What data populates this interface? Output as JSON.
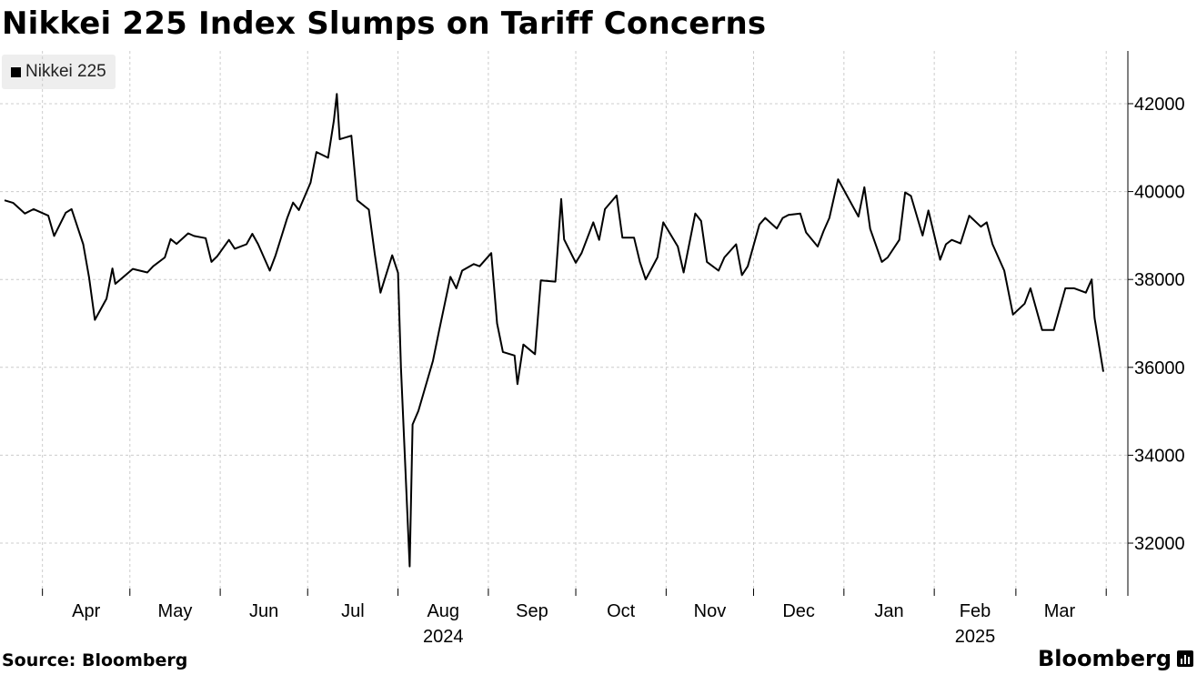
{
  "header": {
    "title": "Nikkei 225 Index Slumps on Tariff Concerns"
  },
  "footer": {
    "source": "Source: Bloomberg",
    "brand": "Bloomberg"
  },
  "colors": {
    "line": "#000000",
    "grid": "#cccccc",
    "axis": "#000000",
    "legend_bg": "#eeeeee"
  },
  "chart_data": {
    "type": "line",
    "title": "Nikkei 225 Index Slumps on Tariff Concerns",
    "xlabel": "",
    "ylabel": "",
    "ylim": [
      30800,
      43200
    ],
    "yticks": [
      32000,
      34000,
      36000,
      38000,
      40000,
      42000
    ],
    "ytick_labels": [
      "32000",
      "34000",
      "36000",
      "38000",
      "40000",
      "42000"
    ],
    "xticks": [
      "Apr",
      "May",
      "Jun",
      "Jul",
      "Aug",
      "Sep",
      "Oct",
      "Nov",
      "Dec",
      "Jan",
      "Feb",
      "Mar"
    ],
    "year_labels": [
      {
        "label": "2024",
        "under": "Aug"
      },
      {
        "label": "2025",
        "under": "Feb"
      }
    ],
    "legend": [
      "Nikkei 225"
    ],
    "legend_position": "top-left",
    "grid": true,
    "x": [
      "2024-03-19",
      "2024-03-22",
      "2024-03-26",
      "2024-03-29",
      "2024-04-03",
      "2024-04-05",
      "2024-04-09",
      "2024-04-11",
      "2024-04-15",
      "2024-04-17",
      "2024-04-19",
      "2024-04-23",
      "2024-04-25",
      "2024-04-26",
      "2024-05-02",
      "2024-05-07",
      "2024-05-09",
      "2024-05-13",
      "2024-05-15",
      "2024-05-17",
      "2024-05-21",
      "2024-05-23",
      "2024-05-27",
      "2024-05-29",
      "2024-05-31",
      "2024-06-04",
      "2024-06-06",
      "2024-06-10",
      "2024-06-12",
      "2024-06-14",
      "2024-06-18",
      "2024-06-20",
      "2024-06-24",
      "2024-06-26",
      "2024-06-28",
      "2024-07-02",
      "2024-07-04",
      "2024-07-08",
      "2024-07-10",
      "2024-07-11",
      "2024-07-12",
      "2024-07-16",
      "2024-07-18",
      "2024-07-22",
      "2024-07-24",
      "2024-07-26",
      "2024-07-30",
      "2024-08-01",
      "2024-08-02",
      "2024-08-05",
      "2024-08-06",
      "2024-08-08",
      "2024-08-13",
      "2024-08-15",
      "2024-08-19",
      "2024-08-21",
      "2024-08-23",
      "2024-08-27",
      "2024-08-29",
      "2024-09-02",
      "2024-09-04",
      "2024-09-06",
      "2024-09-10",
      "2024-09-11",
      "2024-09-13",
      "2024-09-17",
      "2024-09-19",
      "2024-09-24",
      "2024-09-26",
      "2024-09-27",
      "2024-10-01",
      "2024-10-03",
      "2024-10-07",
      "2024-10-09",
      "2024-10-11",
      "2024-10-15",
      "2024-10-17",
      "2024-10-21",
      "2024-10-23",
      "2024-10-25",
      "2024-10-29",
      "2024-10-31",
      "2024-11-05",
      "2024-11-07",
      "2024-11-11",
      "2024-11-13",
      "2024-11-15",
      "2024-11-19",
      "2024-11-21",
      "2024-11-25",
      "2024-11-27",
      "2024-11-29",
      "2024-12-03",
      "2024-12-05",
      "2024-12-09",
      "2024-12-11",
      "2024-12-13",
      "2024-12-17",
      "2024-12-19",
      "2024-12-23",
      "2024-12-25",
      "2024-12-27",
      "2024-12-30",
      "2025-01-06",
      "2025-01-08",
      "2025-01-10",
      "2025-01-14",
      "2025-01-16",
      "2025-01-20",
      "2025-01-22",
      "2025-01-24",
      "2025-01-28",
      "2025-01-30",
      "2025-02-03",
      "2025-02-05",
      "2025-02-07",
      "2025-02-10",
      "2025-02-13",
      "2025-02-17",
      "2025-02-19",
      "2025-02-21",
      "2025-02-25",
      "2025-02-28",
      "2025-03-04",
      "2025-03-06",
      "2025-03-10",
      "2025-03-12",
      "2025-03-14",
      "2025-03-18",
      "2025-03-21",
      "2025-03-25",
      "2025-03-27",
      "2025-03-28",
      "2025-03-31"
    ],
    "series": [
      {
        "name": "Nikkei 225",
        "values": [
          39800,
          39740,
          39500,
          39600,
          39450,
          38990,
          39520,
          39600,
          38800,
          38050,
          37080,
          37560,
          38250,
          37900,
          38240,
          38160,
          38300,
          38500,
          38920,
          38810,
          39050,
          38990,
          38940,
          38400,
          38530,
          38900,
          38700,
          38800,
          39040,
          38800,
          38200,
          38550,
          39400,
          39750,
          39580,
          40200,
          40900,
          40770,
          41620,
          42220,
          41190,
          41270,
          39800,
          39590,
          38600,
          37700,
          38550,
          38150,
          36000,
          31470,
          34700,
          35010,
          36150,
          36800,
          38060,
          37800,
          38200,
          38350,
          38300,
          38600,
          37000,
          36350,
          36270,
          35620,
          36520,
          36300,
          37980,
          37950,
          39830,
          38910,
          38380,
          38600,
          39300,
          38900,
          39600,
          39910,
          38950,
          38950,
          38400,
          38000,
          38500,
          39300,
          38750,
          38160,
          39500,
          39330,
          38400,
          38200,
          38500,
          38800,
          38100,
          38300,
          39250,
          39400,
          39160,
          39400,
          39470,
          39500,
          39070,
          38750,
          39100,
          39400,
          40280,
          39430,
          40100,
          39150,
          38400,
          38500,
          38900,
          39980,
          39900,
          39000,
          39570,
          38450,
          38800,
          38900,
          38820,
          39450,
          39200,
          39300,
          38800,
          38200,
          37200,
          37450,
          37800,
          36850,
          36850,
          36850,
          37800,
          37800,
          37700,
          38000,
          37120,
          35900
        ]
      }
    ]
  }
}
